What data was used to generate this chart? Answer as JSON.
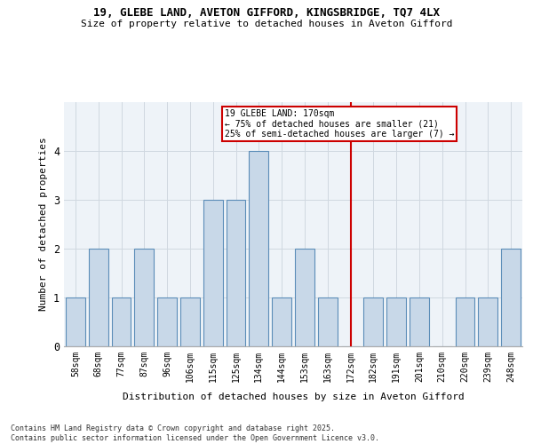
{
  "title1": "19, GLEBE LAND, AVETON GIFFORD, KINGSBRIDGE, TQ7 4LX",
  "title2": "Size of property relative to detached houses in Aveton Gifford",
  "xlabel": "Distribution of detached houses by size in Aveton Gifford",
  "ylabel": "Number of detached properties",
  "categories": [
    "58sqm",
    "68sqm",
    "77sqm",
    "87sqm",
    "96sqm",
    "106sqm",
    "115sqm",
    "125sqm",
    "134sqm",
    "144sqm",
    "153sqm",
    "163sqm",
    "172sqm",
    "182sqm",
    "191sqm",
    "201sqm",
    "210sqm",
    "220sqm",
    "239sqm",
    "248sqm"
  ],
  "values": [
    1,
    2,
    1,
    2,
    1,
    1,
    3,
    3,
    4,
    1,
    2,
    1,
    0,
    1,
    1,
    1,
    0,
    1,
    1,
    2
  ],
  "bar_color": "#c8d8e8",
  "bar_edge_color": "#5b8db8",
  "grid_color": "#d0d8e0",
  "background_color": "#eef3f8",
  "vline_x_index": 12,
  "vline_color": "#cc0000",
  "annotation_text": "19 GLEBE LAND: 170sqm\n← 75% of detached houses are smaller (21)\n25% of semi-detached houses are larger (7) →",
  "annotation_box_color": "#cc0000",
  "footer_text": "Contains HM Land Registry data © Crown copyright and database right 2025.\nContains public sector information licensed under the Open Government Licence v3.0.",
  "ylim": [
    0,
    5
  ],
  "yticks": [
    0,
    1,
    2,
    3,
    4
  ]
}
